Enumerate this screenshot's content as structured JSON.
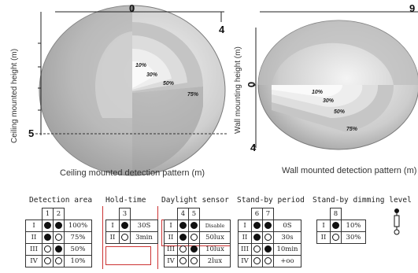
{
  "left_diagram": {
    "top_tick": "0",
    "right_tick": "4",
    "bottom_tick": "5",
    "vertical_label": "Ceiling mounted height (m)",
    "caption": "Ceiling mounted detection pattern (m)",
    "zones": [
      "10%",
      "30%",
      "50%",
      "75%"
    ]
  },
  "right_diagram": {
    "top_tick": "9",
    "left_tick": "0",
    "bottom_tick": "4",
    "vertical_label": "Wall mounting height (m)",
    "caption": "Wall mounted detection pattern (m)",
    "zones": [
      "10%",
      "30%",
      "50%",
      "75%"
    ]
  },
  "detection_area": {
    "title": "Detection area",
    "switches": [
      "1",
      "2"
    ],
    "rows": [
      {
        "label": "I",
        "s": [
          "on",
          "on"
        ],
        "value": "100%"
      },
      {
        "label": "II",
        "s": [
          "on",
          "off"
        ],
        "value": "75%"
      },
      {
        "label": "III",
        "s": [
          "off",
          "on"
        ],
        "value": "50%"
      },
      {
        "label": "IV",
        "s": [
          "off",
          "off"
        ],
        "value": "10%"
      }
    ]
  },
  "hold_time": {
    "title": "Hold-time",
    "switches": [
      "3"
    ],
    "rows": [
      {
        "label": "I",
        "s": [
          "on"
        ],
        "value": "30S"
      },
      {
        "label": "II",
        "s": [
          "off"
        ],
        "value": "3min"
      }
    ]
  },
  "daylight_sensor": {
    "title": "Daylight sensor",
    "switches": [
      "4",
      "5"
    ],
    "rows": [
      {
        "label": "I",
        "s": [
          "on",
          "on"
        ],
        "value": "Disable"
      },
      {
        "label": "II",
        "s": [
          "on",
          "off"
        ],
        "value": "50lux"
      },
      {
        "label": "III",
        "s": [
          "off",
          "on"
        ],
        "value": "10lux"
      },
      {
        "label": "IV",
        "s": [
          "off",
          "off"
        ],
        "value": "2lux"
      }
    ]
  },
  "standby_period": {
    "title": "Stand-by period",
    "switches": [
      "6",
      "7"
    ],
    "rows": [
      {
        "label": "I",
        "s": [
          "on",
          "on"
        ],
        "value": "0S"
      },
      {
        "label": "II",
        "s": [
          "on",
          "off"
        ],
        "value": "30s"
      },
      {
        "label": "III",
        "s": [
          "off",
          "on"
        ],
        "value": "10min"
      },
      {
        "label": "IV",
        "s": [
          "off",
          "off"
        ],
        "value": "+oo"
      }
    ]
  },
  "standby_dimming": {
    "title": "Stand-by dimming level",
    "switches": [
      "8"
    ],
    "rows": [
      {
        "label": "I",
        "s": [
          "on"
        ],
        "value": "10%"
      },
      {
        "label": "II",
        "s": [
          "off"
        ],
        "value": "30%"
      }
    ]
  },
  "colors": {
    "outer_dark": "#8a8a8a",
    "mid": "#b0b0b0",
    "light": "#d8d8d8",
    "lightest": "#f0f0f0",
    "red_box": "#cc3333"
  }
}
